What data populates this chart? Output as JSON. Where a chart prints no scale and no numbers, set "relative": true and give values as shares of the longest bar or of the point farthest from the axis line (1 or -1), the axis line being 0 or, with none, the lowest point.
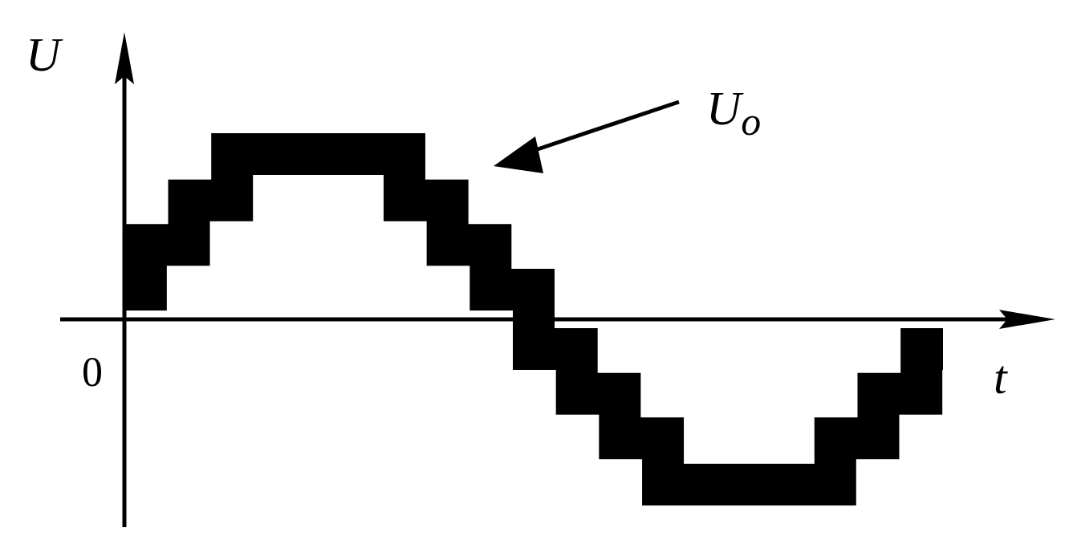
{
  "chart_data": {
    "type": "step",
    "relative": true,
    "xlabel": "t",
    "ylabel": "U",
    "legend": "top right",
    "categories": [
      null,
      null,
      null,
      null,
      null,
      null,
      null,
      null,
      null,
      null,
      null,
      null,
      null,
      null,
      null,
      null,
      null,
      null,
      null,
      null
    ],
    "series": [
      {
        "name": "U$_{o}$",
        "color": "#000000",
        "values": [
          0.18,
          0.45,
          0.72,
          1,
          1,
          1,
          1,
          0.72,
          0.45,
          0.18,
          -0.18,
          -0.45,
          -0.72,
          -1,
          -1,
          -1,
          -1,
          -0.72,
          -0.45,
          -0.18
        ]
      }
    ],
    "annotations": [
      "0"
    ]
  }
}
